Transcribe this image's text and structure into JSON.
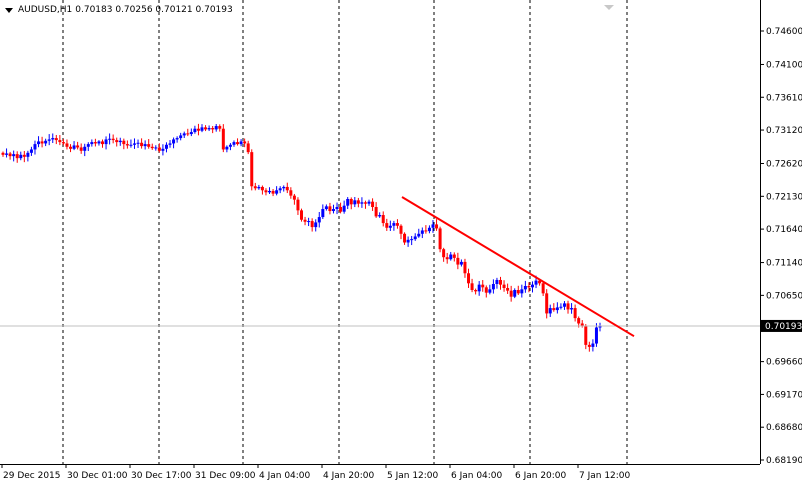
{
  "header": {
    "symbol": "AUDUSD,H1",
    "ohlc": "0.70183 0.70256 0.70121 0.70193"
  },
  "colors": {
    "bull": "#0000ff",
    "bear": "#ff0000",
    "trendline": "#ff0000",
    "grid": "#000000",
    "background": "#ffffff",
    "price_tag": "#000000",
    "current_line": "#c0c0c0"
  },
  "current_price_label": "0.70193",
  "chart_data": {
    "type": "candlestick",
    "title": "",
    "grid": "vertical-dashed",
    "y_ticks": [
      "0.74600",
      "0.74100",
      "0.73610",
      "0.73120",
      "0.72620",
      "0.72130",
      "0.71640",
      "0.71140",
      "0.70650",
      "0.70193",
      "0.69660",
      "0.69170",
      "0.68680",
      "0.68190"
    ],
    "y_tick_values": [
      0.746,
      0.741,
      0.7361,
      0.7312,
      0.7262,
      0.7213,
      0.7164,
      0.7114,
      0.7065,
      0.70193,
      0.6966,
      0.6917,
      0.6868,
      0.6819
    ],
    "x_tick_labels": [
      "29 Dec 2015",
      "30 Dec 01:00",
      "30 Dec 17:00",
      "31 Dec 09:00",
      "4 Jan 04:00",
      "4 Jan 20:00",
      "5 Jan 12:00",
      "6 Jan 04:00",
      "6 Jan 20:00",
      "7 Jan 12:00"
    ],
    "ylim": [
      0.6815,
      0.7485
    ],
    "current_price": 0.70193,
    "trendline": {
      "from_label": "5 Jan 12:00",
      "from_price": 0.7212,
      "to_price": 0.7004
    },
    "closes": [
      0.7275,
      0.7277,
      0.7273,
      0.7276,
      0.727,
      0.7275,
      0.7272,
      0.7278,
      0.7283,
      0.7291,
      0.7295,
      0.7292,
      0.7296,
      0.7298,
      0.73,
      0.7297,
      0.7294,
      0.7292,
      0.7287,
      0.7284,
      0.7289,
      0.7286,
      0.7281,
      0.7287,
      0.7291,
      0.7294,
      0.7292,
      0.7295,
      0.7291,
      0.7298,
      0.7299,
      0.7297,
      0.7294,
      0.7296,
      0.7291,
      0.7289,
      0.729,
      0.7292,
      0.7293,
      0.7288,
      0.7291,
      0.7287,
      0.7285,
      0.7286,
      0.7281,
      0.7284,
      0.729,
      0.7292,
      0.7298,
      0.73,
      0.7304,
      0.7307,
      0.7306,
      0.7309,
      0.7314,
      0.7311,
      0.7316,
      0.7313,
      0.7315,
      0.7313,
      0.7318,
      0.7314,
      0.7283,
      0.7287,
      0.729,
      0.7294,
      0.7291,
      0.7295,
      0.7292,
      0.7279,
      0.7228,
      0.7225,
      0.7227,
      0.7222,
      0.7219,
      0.7221,
      0.7217,
      0.7222,
      0.7225,
      0.7227,
      0.7222,
      0.7214,
      0.7208,
      0.7192,
      0.7178,
      0.7175,
      0.7176,
      0.7167,
      0.7174,
      0.7182,
      0.7194,
      0.7198,
      0.7191,
      0.7194,
      0.7197,
      0.719,
      0.7199,
      0.7209,
      0.7201,
      0.7207,
      0.7202,
      0.7204,
      0.7202,
      0.7205,
      0.7197,
      0.7183,
      0.7185,
      0.7173,
      0.7166,
      0.7169,
      0.7173,
      0.7169,
      0.7157,
      0.7144,
      0.7148,
      0.7149,
      0.7153,
      0.7157,
      0.7162,
      0.7161,
      0.7166,
      0.7171,
      0.7165,
      0.7134,
      0.7122,
      0.7119,
      0.7126,
      0.7121,
      0.7111,
      0.7115,
      0.7098,
      0.7083,
      0.7073,
      0.7071,
      0.7081,
      0.7077,
      0.7069,
      0.7074,
      0.7082,
      0.7088,
      0.7081,
      0.7076,
      0.7072,
      0.7063,
      0.7073,
      0.7068,
      0.7074,
      0.7079,
      0.7077,
      0.7081,
      0.7087,
      0.7083,
      0.7068,
      0.7038,
      0.7046,
      0.7043,
      0.7047,
      0.7048,
      0.7053,
      0.7044,
      0.7046,
      0.7031,
      0.7023,
      0.7019,
      0.6991,
      0.6988,
      0.6993,
      0.7017,
      0.7019
    ]
  }
}
